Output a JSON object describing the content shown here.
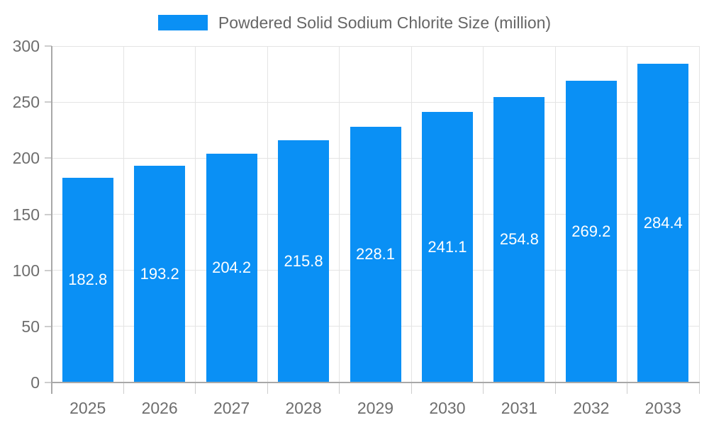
{
  "chart_data": {
    "type": "bar",
    "title": "Powdered Solid Sodium Chlorite Size (million)",
    "categories": [
      "2025",
      "2026",
      "2027",
      "2028",
      "2029",
      "2030",
      "2031",
      "2032",
      "2033"
    ],
    "series": [
      {
        "name": "Powdered Solid Sodium Chlorite Size (million)",
        "values": [
          182.8,
          193.2,
          204.2,
          215.8,
          228.1,
          241.1,
          254.8,
          269.2,
          284.4
        ]
      }
    ],
    "xlabel": "",
    "ylabel": "",
    "ylim": [
      0,
      300
    ],
    "yticks": [
      0,
      50,
      100,
      150,
      200,
      250,
      300
    ],
    "legend_position": "top",
    "grid": true,
    "value_label_decimals": 1,
    "colors": {
      "bar": "#0A90F5",
      "bar_label": "#FFFFFF",
      "axis_text": "#6E6E6E",
      "legend_text": "#666666",
      "grid": "#E4E4E4",
      "tick": "#CDCDCD",
      "axis_line": "#A8A8A8"
    }
  }
}
